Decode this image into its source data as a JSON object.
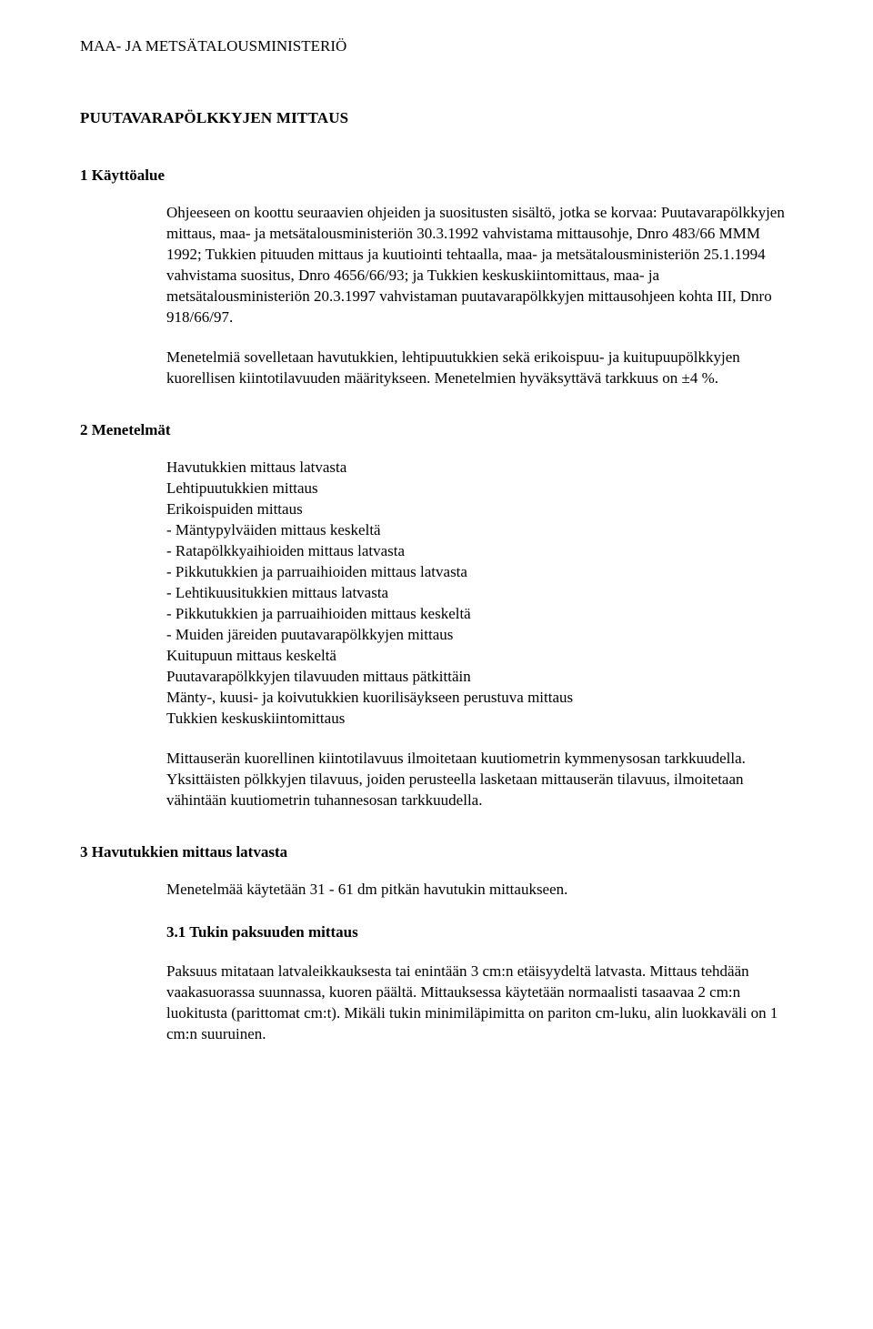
{
  "org": "MAA- JA METSÄTALOUSMINISTERIÖ",
  "doc_title": "PUUTAVARAPÖLKKYJEN MITTAUS",
  "section1": {
    "heading": "1 Käyttöalue",
    "p1": "Ohjeeseen on koottu seuraavien ohjeiden ja suositusten sisältö, jotka se korvaa: Puutavarapölkkyjen mittaus, maa- ja metsätalousministeriön 30.3.1992 vahvistama mittausohje, Dnro 483/66 MMM 1992; Tukkien pituuden mittaus ja kuutiointi tehtaalla, maa- ja metsätalousministeriön 25.1.1994 vahvistama suositus, Dnro 4656/66/93; ja Tukkien keskuskiintomittaus, maa- ja metsätalousministeriön 20.3.1997 vahvistaman puutavarapölkkyjen mittausohjeen kohta III, Dnro 918/66/97.",
    "p2": "Menetelmiä sovelletaan havutukkien, lehtipuutukkien sekä erikoispuu- ja kuitupuupölkkyjen kuorellisen kiintotilavuuden määritykseen. Menetelmien hyväksyttävä tarkkuus on ±4 %."
  },
  "section2": {
    "heading": "2 Menetelmät",
    "items": [
      "Havutukkien mittaus latvasta",
      "Lehtipuutukkien mittaus",
      "Erikoispuiden mittaus",
      "- Mäntypylväiden mittaus keskeltä",
      "- Ratapölkkyaihioiden mittaus latvasta",
      "- Pikkutukkien ja parruaihioiden mittaus latvasta",
      "- Lehtikuusitukkien mittaus latvasta",
      "- Pikkutukkien ja parruaihioiden mittaus keskeltä",
      "- Muiden järeiden puutavarapölkkyjen mittaus",
      "Kuitupuun mittaus keskeltä",
      "Puutavarapölkkyjen tilavuuden mittaus pätkittäin",
      "Mänty-, kuusi- ja koivutukkien kuorilisäykseen perustuva mittaus",
      "Tukkien keskuskiintomittaus"
    ],
    "p_after": "Mittauserän kuorellinen kiintotilavuus ilmoitetaan kuutiometrin kymmenysosan tarkkuudella. Yksittäisten pölkkyjen tilavuus, joiden perusteella lasketaan mittauserän tilavuus, ilmoitetaan vähintään kuutiometrin tuhannesosan tarkkuudella."
  },
  "section3": {
    "heading": "3 Havutukkien mittaus latvasta",
    "p1": "Menetelmää käytetään 31 - 61 dm pitkän havutukin mittaukseen.",
    "sub_heading": "3.1 Tukin paksuuden mittaus",
    "p2": "Paksuus mitataan latvaleikkauksesta tai enintään 3 cm:n etäisyydeltä latvasta. Mittaus tehdään vaakasuorassa suunnassa, kuoren päältä. Mittauksessa käytetään normaalisti tasaavaa 2 cm:n luokitusta (parittomat cm:t). Mikäli tukin minimiläpimitta on pariton cm-luku, alin luokkaväli on 1 cm:n suuruinen."
  }
}
